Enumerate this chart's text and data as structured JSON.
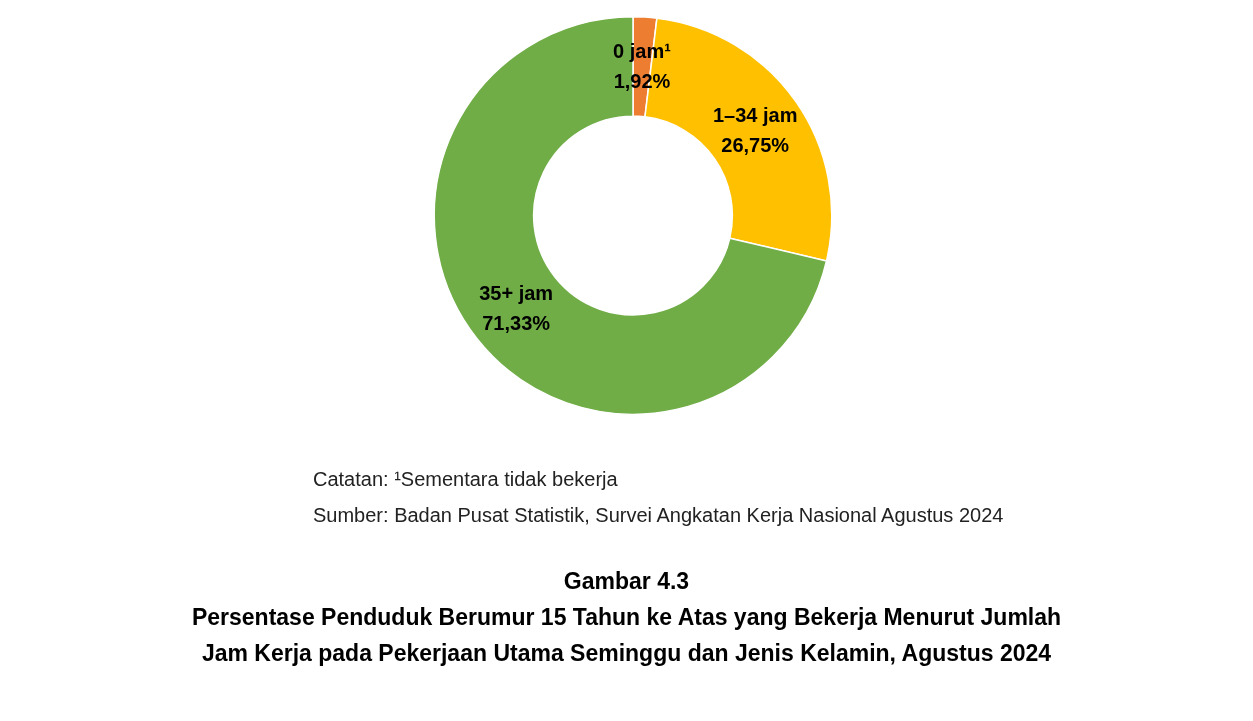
{
  "chart_data": {
    "type": "donut",
    "title": "Gambar 4.3",
    "subtitle": "Persentase Penduduk Berumur 15 Tahun ke Atas yang Bekerja Menurut Jumlah Jam Kerja pada Pekerjaan Utama Seminggu dan Jenis Kelamin, Agustus 2024",
    "categories": [
      "0 jam¹",
      "1–34 jam",
      "35+ jam"
    ],
    "values": [
      1.92,
      26.75,
      71.33
    ],
    "value_labels": [
      "1,92%",
      "26,75%",
      "71,33%"
    ],
    "colors": [
      "#ed7d31",
      "#ffc000",
      "#70ad47"
    ],
    "annotations": [
      "Catatan: ¹Sementara tidak bekerja",
      "Sumber: Badan Pusat Statistik, Survei Angkatan Kerja Nasional Agustus 2024"
    ]
  }
}
